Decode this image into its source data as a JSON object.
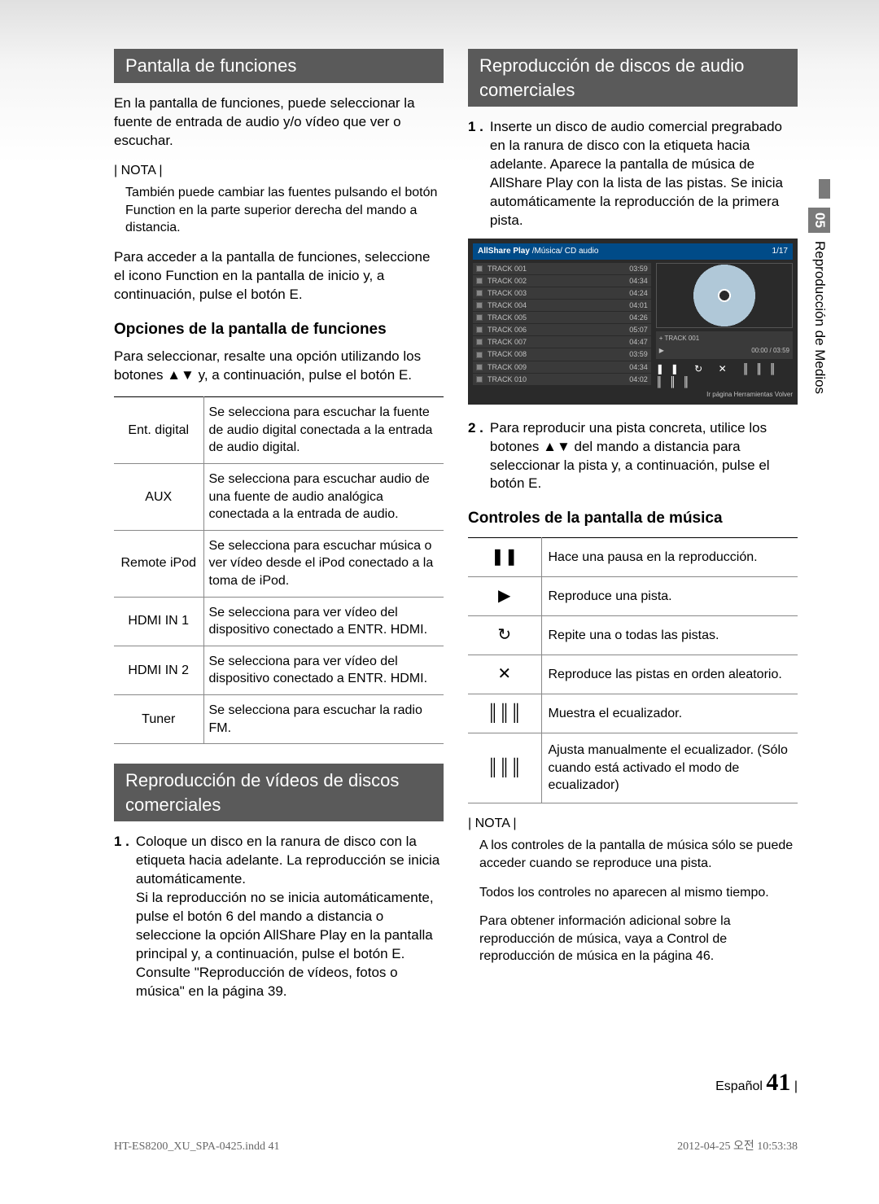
{
  "sideTab": {
    "chapter": "05",
    "title": "Reproducción de Medios"
  },
  "left": {
    "h1": "Pantalla de funciones",
    "intro": "En la pantalla de funciones, puede seleccionar la fuente de entrada de audio y/o vídeo que ver o escuchar.",
    "noteLabel": "| NOTA |",
    "note": "También puede cambiar las fuentes pulsando el botón Function en la parte superior derecha del mando a distancia.",
    "access": "Para acceder a la pantalla de funciones, seleccione el icono Function en la pantalla de inicio y, a continuación, pulse el botón E.",
    "subH": "Opciones de la pantalla de funciones",
    "selectPara": "Para seleccionar, resalte una opción utilizando los botones ▲▼ y, a continuación, pulse el botón E.",
    "options": [
      {
        "name": "Ent. digital",
        "desc": "Se selecciona para escuchar la fuente de audio digital conectada a la entrada de audio digital."
      },
      {
        "name": "AUX",
        "desc": "Se selecciona para escuchar audio de una fuente de audio analógica conectada a la entrada de audio."
      },
      {
        "name": "Remote iPod",
        "desc": "Se selecciona para escuchar música o ver vídeo desde el iPod conectado a la toma de iPod."
      },
      {
        "name": "HDMI IN 1",
        "desc": "Se selecciona para ver vídeo del dispositivo conectado a ENTR. HDMI."
      },
      {
        "name": "HDMI IN 2",
        "desc": "Se selecciona para ver vídeo del dispositivo conectado a ENTR. HDMI."
      },
      {
        "name": "Tuner",
        "desc": "Se selecciona para escuchar la radio FM."
      }
    ],
    "h2": "Reproducción de vídeos de discos comerciales",
    "step1num": "1 .",
    "step1": "Coloque un disco en la ranura de disco con la etiqueta hacia adelante. La reproducción se inicia automáticamente.\nSi la reproducción no se inicia automáticamente, pulse el botón 6 del mando a distancia o seleccione la opción AllShare Play en la pantalla principal y, a continuación, pulse el botón E. Consulte \"Reproducción de vídeos, fotos o música\" en la página 39."
  },
  "right": {
    "h1": "Reproducción de discos de audio comerciales",
    "step1num": "1 .",
    "step1": "Inserte un disco de audio comercial pregrabado en la ranura de disco con la etiqueta hacia adelante. Aparece la pantalla de música de AllShare Play con la lista de las pistas. Se inicia automáticamente la reproducción de la primera pista.",
    "mock": {
      "brand": "AllShare Play",
      "crumb": "/Música/",
      "src": "CD audio",
      "counter": "1/17",
      "tracks": [
        {
          "n": "TRACK 001",
          "d": "03:59"
        },
        {
          "n": "TRACK 002",
          "d": "04:34"
        },
        {
          "n": "TRACK 003",
          "d": "04:24"
        },
        {
          "n": "TRACK 004",
          "d": "04:01"
        },
        {
          "n": "TRACK 005",
          "d": "04:26"
        },
        {
          "n": "TRACK 006",
          "d": "05:07"
        },
        {
          "n": "TRACK 007",
          "d": "04:47"
        },
        {
          "n": "TRACK 008",
          "d": "03:59"
        },
        {
          "n": "TRACK 009",
          "d": "04:34"
        },
        {
          "n": "TRACK 010",
          "d": "04:02"
        }
      ],
      "nowPlaying": "+ TRACK 001",
      "time": "00:00 / 03:59",
      "ctrlRow": "❚❚  ↻  ✕  ║║║ ║║║",
      "footer": "Ir página   Herramientas   Volver"
    },
    "step2num": "2 .",
    "step2": "Para reproducir una pista concreta, utilice los botones ▲▼ del mando a distancia para seleccionar la pista y, a continuación, pulse el botón E.",
    "subH": "Controles de la pantalla de música",
    "controls": [
      {
        "icon": "❚❚",
        "desc": "Hace una pausa en la reproducción."
      },
      {
        "icon": "▶",
        "desc": "Reproduce una pista."
      },
      {
        "icon": "↻",
        "desc": "Repite una o todas las pistas."
      },
      {
        "icon": "✕",
        "desc": "Reproduce las pistas en orden aleatorio."
      },
      {
        "icon": "║║║",
        "desc": "Muestra el ecualizador."
      },
      {
        "icon": "║║║",
        "desc": "Ajusta manualmente el ecualizador. (Sólo cuando está activado el modo de ecualizador)"
      }
    ],
    "noteLabel": "| NOTA |",
    "note1": "A los controles de la pantalla de música sólo se puede acceder cuando se reproduce una pista.",
    "note2": "Todos los controles no aparecen al mismo tiempo.",
    "note3": "Para obtener información adicional sobre la reproducción de música, vaya a Control de reproducción de música en la página 46."
  },
  "footer": {
    "lang": "Español",
    "pageNum": "41",
    "printLeft": "HT-ES8200_XU_SPA-0425.indd   41",
    "printRight": "2012-04-25   오전 10:53:38"
  }
}
